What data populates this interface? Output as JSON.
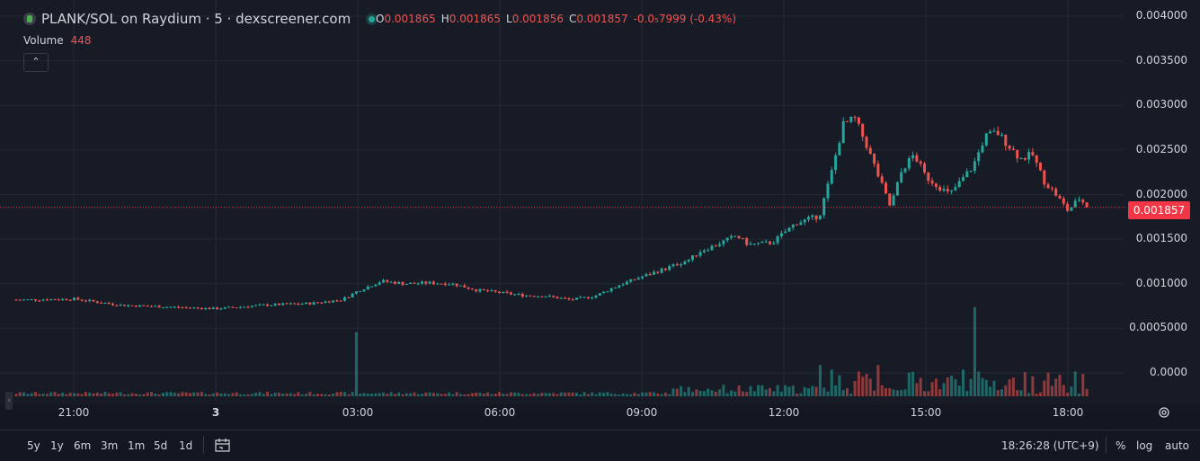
{
  "header": {
    "title": "PLANK/SOL on Raydium · 5 · dexscreener.com",
    "ohlc": [
      {
        "k": "O",
        "v": "0.001865"
      },
      {
        "k": "H",
        "v": "0.001865"
      },
      {
        "k": "L",
        "v": "0.001856"
      },
      {
        "k": "C",
        "v": "0.001857"
      }
    ],
    "change": "-0.0₅7999 (-0.43%)",
    "volume_label": "Volume",
    "volume_value": "448",
    "collapse_glyph": "⌃"
  },
  "icons": {
    "gear": "settings-icon",
    "calendar": "date-range-icon",
    "collapse": "chevron-up-icon"
  },
  "colors": {
    "up": "#26a69a",
    "down": "#ef5350",
    "price_line": "#f23645",
    "background": "#171b26",
    "grid": "#242833"
  },
  "current_price_label": "0.001857",
  "bottom": {
    "ranges": [
      "5y",
      "1y",
      "6m",
      "3m",
      "1m",
      "5d",
      "1d"
    ],
    "clock": "18:26:28 (UTC+9)",
    "percent": "%",
    "log": "log",
    "auto": "auto"
  },
  "chart_data": {
    "type": "candlestick",
    "y_ticks": [
      "0.004000",
      "0.003500",
      "0.003000",
      "0.002500",
      "0.002000",
      "0.001500",
      "0.001000",
      "0.0005000",
      "0.0000"
    ],
    "x_ticks": [
      "21:00",
      "3",
      "03:00",
      "06:00",
      "09:00",
      "12:00",
      "15:00",
      "18:00"
    ],
    "ylim": [
      -0.00025,
      0.0042
    ],
    "last_price": 0.001857,
    "close_path": [
      [
        "20:00",
        0.00082
      ],
      [
        "21:00",
        0.00083
      ],
      [
        "22:00",
        0.00076
      ],
      [
        "23:00",
        0.00074
      ],
      [
        "00:00",
        0.00072
      ],
      [
        "00:30",
        0.00074
      ],
      [
        "01:00",
        0.00076
      ],
      [
        "02:00",
        0.00078
      ],
      [
        "02:40",
        0.00082
      ],
      [
        "03:00",
        0.00092
      ],
      [
        "03:30",
        0.00103
      ],
      [
        "04:00",
        0.001
      ],
      [
        "04:30",
        0.00101
      ],
      [
        "05:00",
        0.001
      ],
      [
        "05:30",
        0.00093
      ],
      [
        "06:00",
        0.0009
      ],
      [
        "06:30",
        0.00087
      ],
      [
        "07:00",
        0.00086
      ],
      [
        "07:30",
        0.00082
      ],
      [
        "08:00",
        0.00086
      ],
      [
        "08:30",
        0.00098
      ],
      [
        "09:00",
        0.00108
      ],
      [
        "09:30",
        0.00117
      ],
      [
        "10:00",
        0.00127
      ],
      [
        "10:15",
        0.00137
      ],
      [
        "10:30",
        0.00142
      ],
      [
        "11:00",
        0.00154
      ],
      [
        "11:15",
        0.00144
      ],
      [
        "11:45",
        0.00146
      ],
      [
        "12:15",
        0.00168
      ],
      [
        "12:45",
        0.00176
      ],
      [
        "13:00",
        0.00223
      ],
      [
        "13:15",
        0.00278
      ],
      [
        "13:30",
        0.00285
      ],
      [
        "13:45",
        0.00255
      ],
      [
        "14:00",
        0.0022
      ],
      [
        "14:15",
        0.00186
      ],
      [
        "14:30",
        0.00228
      ],
      [
        "14:45",
        0.00245
      ],
      [
        "15:00",
        0.0022
      ],
      [
        "15:30",
        0.002
      ],
      [
        "16:00",
        0.00232
      ],
      [
        "16:15",
        0.00265
      ],
      [
        "16:30",
        0.0027
      ],
      [
        "16:45",
        0.00255
      ],
      [
        "17:00",
        0.0024
      ],
      [
        "17:15",
        0.00245
      ],
      [
        "17:30",
        0.00215
      ],
      [
        "17:45",
        0.002
      ],
      [
        "18:00",
        0.00182
      ],
      [
        "18:15",
        0.00196
      ],
      [
        "18:25",
        0.001857
      ]
    ],
    "volume_spikes": [
      [
        "03:00",
        0.00072
      ],
      [
        "12:45",
        0.00035
      ],
      [
        "13:00",
        0.0003
      ],
      [
        "14:00",
        0.00035
      ],
      [
        "16:00",
        0.001
      ],
      [
        "15:45",
        0.0003
      ]
    ]
  }
}
